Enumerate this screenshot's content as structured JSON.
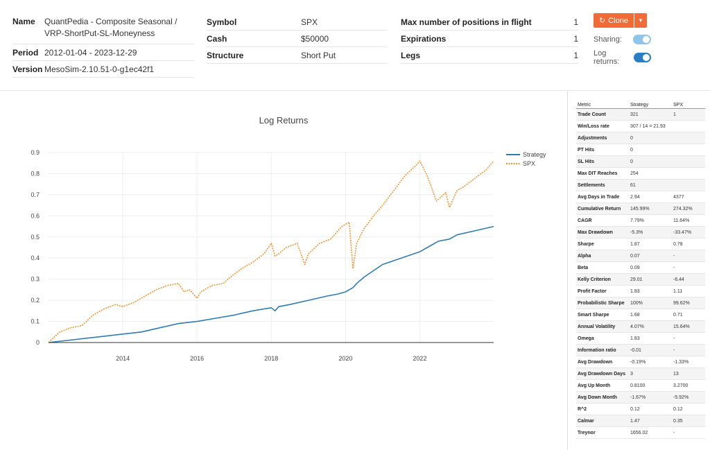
{
  "info": {
    "name_label": "Name",
    "name_value": "QuantPedia - Composite Seasonal / VRP-ShortPut-SL-Moneyness",
    "period_label": "Period",
    "period_value": "2012-01-04 - 2023-12-29",
    "version_label": "Version",
    "version_value": "MesoSim-2.10.51-0-g1ec42f1",
    "symbol_label": "Symbol",
    "symbol_value": "SPX",
    "cash_label": "Cash",
    "cash_value": "$50000",
    "structure_label": "Structure",
    "structure_value": "Short Put",
    "max_positions_label": "Max number of positions in flight",
    "max_positions_value": "1",
    "expirations_label": "Expirations",
    "expirations_value": "1",
    "legs_label": "Legs",
    "legs_value": "1"
  },
  "controls": {
    "clone_label": "Clone",
    "sharing_label": "Sharing:",
    "log_returns_label": "Log returns:",
    "sharing_on": true,
    "log_returns_on": true
  },
  "chart_data": {
    "type": "line",
    "title": "Log Returns",
    "xlabel": "",
    "ylabel": "",
    "xlim": [
      2012.0,
      2023.99
    ],
    "ylim": [
      0,
      0.9
    ],
    "x_ticks": [
      "2014",
      "2016",
      "2018",
      "2020",
      "2022"
    ],
    "y_ticks": [
      "0",
      "0.1",
      "0.2",
      "0.3",
      "0.4",
      "0.5",
      "0.6",
      "0.7",
      "0.8",
      "0.9"
    ],
    "legend_position": "top-right",
    "series": [
      {
        "name": "Strategy",
        "color": "#2e7bb0",
        "style": "solid",
        "x": [
          2012.0,
          2012.5,
          2013.0,
          2013.5,
          2014.0,
          2014.5,
          2015.0,
          2015.5,
          2016.0,
          2016.5,
          2017.0,
          2017.5,
          2018.0,
          2018.1,
          2018.2,
          2018.5,
          2019.0,
          2019.5,
          2019.8,
          2020.0,
          2020.2,
          2020.3,
          2020.5,
          2021.0,
          2021.5,
          2022.0,
          2022.3,
          2022.5,
          2022.8,
          2023.0,
          2023.5,
          2023.99
        ],
        "values": [
          0.0,
          0.01,
          0.02,
          0.03,
          0.04,
          0.05,
          0.07,
          0.09,
          0.1,
          0.115,
          0.13,
          0.15,
          0.165,
          0.15,
          0.17,
          0.18,
          0.2,
          0.22,
          0.23,
          0.24,
          0.26,
          0.28,
          0.31,
          0.37,
          0.4,
          0.43,
          0.46,
          0.48,
          0.49,
          0.51,
          0.53,
          0.55
        ]
      },
      {
        "name": "SPX",
        "color": "#f0922e",
        "style": "dotted",
        "x": [
          2012.0,
          2012.3,
          2012.6,
          2012.9,
          2013.2,
          2013.5,
          2013.8,
          2014.0,
          2014.3,
          2014.6,
          2014.9,
          2015.2,
          2015.5,
          2015.65,
          2015.8,
          2016.0,
          2016.1,
          2016.4,
          2016.7,
          2016.9,
          2017.2,
          2017.5,
          2017.8,
          2018.0,
          2018.1,
          2018.2,
          2018.4,
          2018.7,
          2018.9,
          2019.0,
          2019.3,
          2019.6,
          2019.9,
          2020.1,
          2020.2,
          2020.3,
          2020.5,
          2020.8,
          2021.0,
          2021.3,
          2021.6,
          2021.9,
          2022.0,
          2022.2,
          2022.45,
          2022.7,
          2022.8,
          2023.0,
          2023.2,
          2023.5,
          2023.8,
          2023.99
        ],
        "values": [
          0.0,
          0.05,
          0.07,
          0.08,
          0.13,
          0.16,
          0.18,
          0.17,
          0.19,
          0.22,
          0.25,
          0.27,
          0.28,
          0.24,
          0.25,
          0.21,
          0.24,
          0.27,
          0.28,
          0.31,
          0.35,
          0.38,
          0.42,
          0.47,
          0.41,
          0.42,
          0.45,
          0.47,
          0.37,
          0.42,
          0.47,
          0.49,
          0.55,
          0.57,
          0.35,
          0.47,
          0.54,
          0.61,
          0.65,
          0.72,
          0.79,
          0.84,
          0.86,
          0.79,
          0.67,
          0.71,
          0.64,
          0.72,
          0.74,
          0.78,
          0.82,
          0.86
        ]
      }
    ]
  },
  "metrics": {
    "headers": [
      "Metric",
      "Strategy",
      "SPX"
    ],
    "rows": [
      [
        "Trade Count",
        "321",
        "1"
      ],
      [
        "Win/Loss rate",
        "307 / 14 = 21.93",
        ""
      ],
      [
        "Adjustments",
        "0",
        ""
      ],
      [
        "PT Hits",
        "0",
        ""
      ],
      [
        "SL Hits",
        "0",
        ""
      ],
      [
        "Max DIT Reaches",
        "254",
        ""
      ],
      [
        "Settlements",
        "61",
        ""
      ],
      [
        "Avg Days in Trade",
        "2.94",
        "4377"
      ],
      [
        "Cumulative Return",
        "145.99%",
        "274.32%"
      ],
      [
        "CAGR",
        "7.79%",
        "11.64%"
      ],
      [
        "Max Drawdown",
        "-5.3%",
        "-33.47%"
      ],
      [
        "Sharpe",
        "1.87",
        "0.78"
      ],
      [
        "Alpha",
        "0.07",
        "-"
      ],
      [
        "Beta",
        "0.09",
        "-"
      ],
      [
        "Kelly Criterion",
        "29.01",
        "-6.44"
      ],
      [
        "Profit Factor",
        "1.83",
        "1.11"
      ],
      [
        "Probabilistic Sharpe",
        "100%",
        "99.62%"
      ],
      [
        "Smart Sharpe",
        "1.68",
        "0.71"
      ],
      [
        "Annual Volatility",
        "4.07%",
        "15.64%"
      ],
      [
        "Omega",
        "1.83",
        "-"
      ],
      [
        "Information ratio",
        "-0.01",
        "-"
      ],
      [
        "Avg Drawdown",
        "-0.19%",
        "-1.33%"
      ],
      [
        "Avg Drawdown Days",
        "3",
        "13"
      ],
      [
        "Avg Up Month",
        "0.8100",
        "3.2700"
      ],
      [
        "Avg Down Month",
        "-1.67%",
        "-5.92%"
      ],
      [
        "R^2",
        "0.12",
        "0.12"
      ],
      [
        "Calmar",
        "1.47",
        "0.35"
      ],
      [
        "Treynor",
        "1656.02",
        "-"
      ]
    ]
  }
}
